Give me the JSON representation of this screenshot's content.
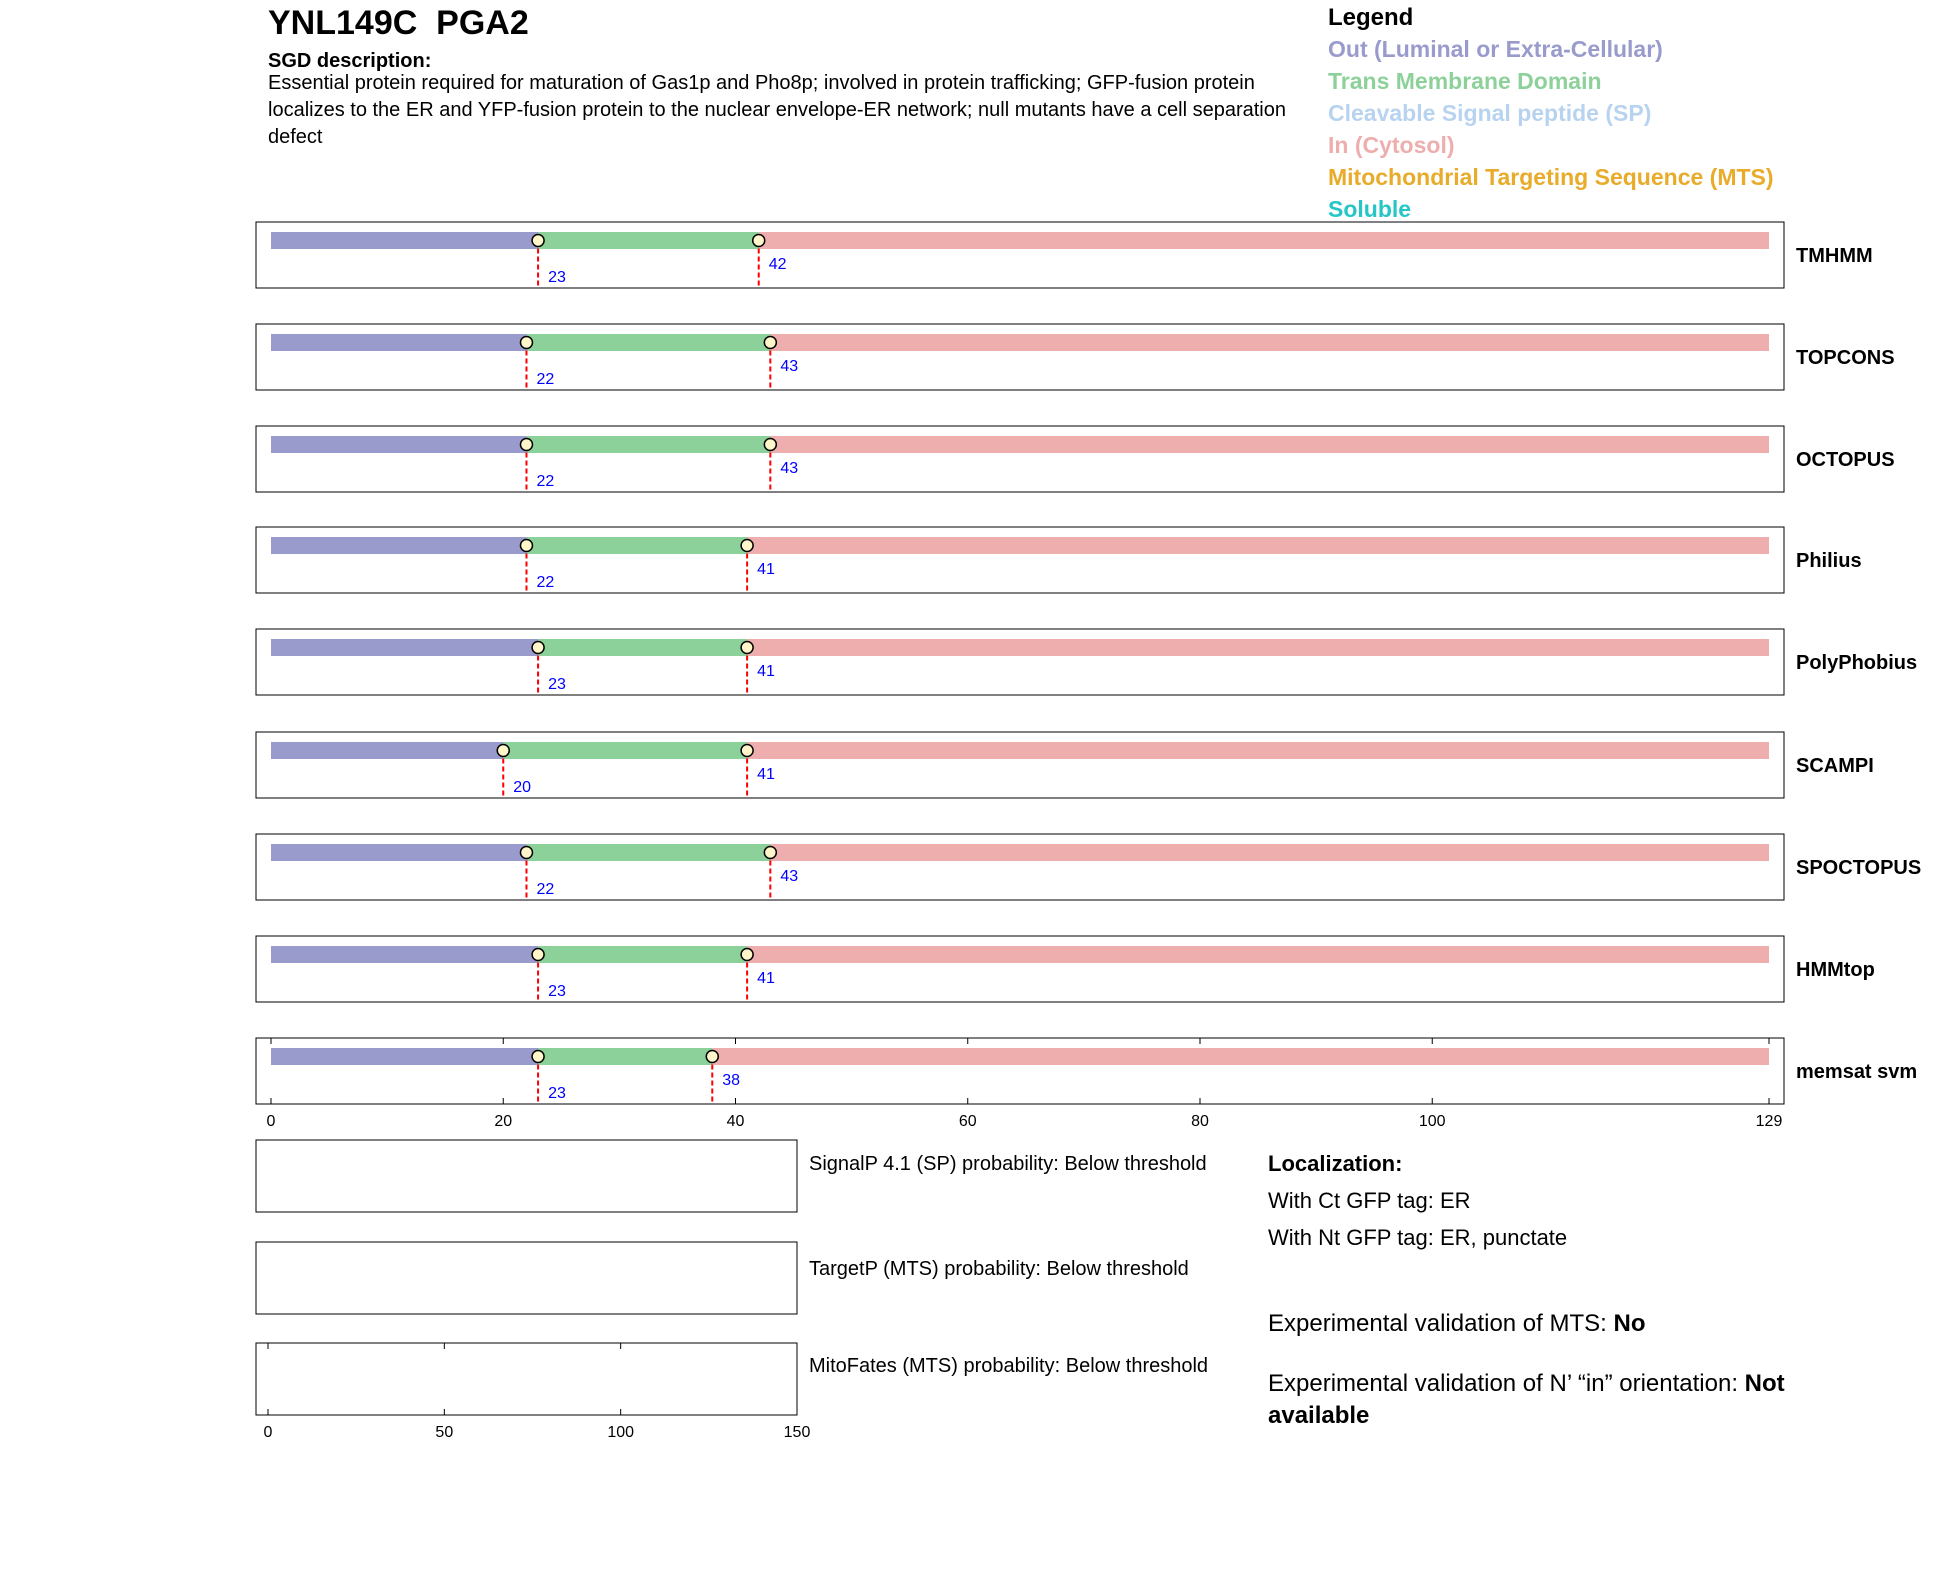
{
  "header": {
    "title": "YNL149C  PGA2",
    "sgd_heading": "SGD description:",
    "sgd_text": "Essential protein required for maturation of Gas1p and Pho8p; involved in protein trafficking; GFP-fusion protein localizes to the ER and YFP-fusion protein to the nuclear envelope-ER network; null mutants have a cell separation defect"
  },
  "legend": {
    "title": "Legend",
    "items": [
      {
        "label": "Out (Luminal or Extra-Cellular)",
        "color": "#9a9bcd"
      },
      {
        "label": "Trans Membrane Domain",
        "color": "#8dd19a"
      },
      {
        "label": "Cleavable Signal peptide (SP)",
        "color": "#b8d3f0"
      },
      {
        "label": "In (Cytosol)",
        "color": "#eeaeae"
      },
      {
        "label": "Mitochondrial Targeting Sequence (MTS)",
        "color": "#e8ab2a"
      },
      {
        "label": "Soluble",
        "color": "#26c6c6"
      }
    ]
  },
  "chart_data": {
    "type": "bar",
    "protein_length": 129,
    "x_ticks": [
      0,
      20,
      40,
      60,
      80,
      100,
      129
    ],
    "colors": {
      "out": "#9a9bcd",
      "tm": "#8dd19a",
      "in": "#eeaeae",
      "boundary": "#ff0000",
      "label": "#0000ff"
    },
    "predictors": [
      {
        "name": "TMHMM",
        "tm_start": 23,
        "tm_end": 42
      },
      {
        "name": "TOPCONS",
        "tm_start": 22,
        "tm_end": 43
      },
      {
        "name": "OCTOPUS",
        "tm_start": 22,
        "tm_end": 43
      },
      {
        "name": "Philius",
        "tm_start": 22,
        "tm_end": 41
      },
      {
        "name": "PolyPhobius",
        "tm_start": 23,
        "tm_end": 41
      },
      {
        "name": "SCAMPI",
        "tm_start": 20,
        "tm_end": 41
      },
      {
        "name": "SPOCTOPUS",
        "tm_start": 22,
        "tm_end": 43
      },
      {
        "name": "HMMtop",
        "tm_start": 23,
        "tm_end": 41
      },
      {
        "name": "memsat svm",
        "tm_start": 23,
        "tm_end": 38
      }
    ],
    "probability_axis": {
      "ticks": [
        0,
        50,
        100,
        150
      ],
      "xlim": [
        0,
        150
      ]
    },
    "probability_panels": [
      {
        "label": "SignalP 4.1 (SP) probability: Below threshold"
      },
      {
        "label": "TargetP (MTS) probability: Below threshold"
      },
      {
        "label": "MitoFates (MTS) probability: Below threshold"
      }
    ]
  },
  "localization": {
    "heading": "Localization:",
    "ct": "With Ct GFP tag: ER",
    "nt": "With Nt GFP tag: ER, punctate"
  },
  "validation": {
    "mts_label": "Experimental validation of MTS: ",
    "mts_value": "No",
    "orientation_label": "Experimental validation of N’ “in” orientation: ",
    "orientation_value": "Not available"
  }
}
